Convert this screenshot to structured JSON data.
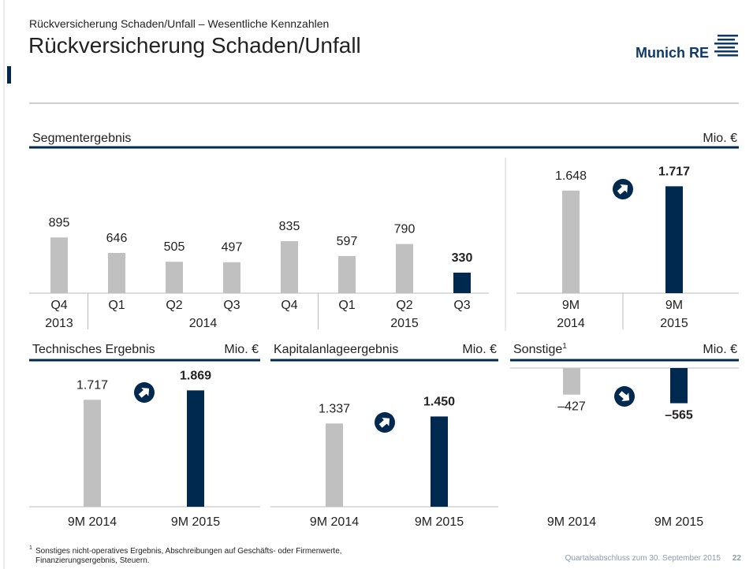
{
  "header": {
    "kicker": "Rückversicherung Schaden/Unfall – Wesentliche Kennzahlen",
    "title": "Rückversicherung Schaden/Unfall",
    "logo": "Munich RE"
  },
  "chart_data": [
    {
      "type": "bar",
      "title": "Segmentergebnis",
      "unit": "Mio. €",
      "categories": [
        "Q4",
        "Q1",
        "Q2",
        "Q3",
        "Q4",
        "Q1",
        "Q2",
        "Q3"
      ],
      "category_groups": [
        {
          "label": "2013",
          "size": 1
        },
        {
          "label": "2014",
          "size": 4
        },
        {
          "label": "2015",
          "size": 3
        }
      ],
      "values": [
        895,
        646,
        505,
        497,
        835,
        597,
        790,
        330
      ],
      "colors": [
        "#c0c0c0",
        "#c0c0c0",
        "#c0c0c0",
        "#c0c0c0",
        "#c0c0c0",
        "#c0c0c0",
        "#c0c0c0",
        "#00294f"
      ],
      "highlight": 7
    },
    {
      "type": "bar",
      "categories": [
        "9M 2014",
        "9M 2015"
      ],
      "values": [
        1648,
        1717
      ],
      "value_labels": [
        "1.648",
        "1.717"
      ],
      "colors": [
        "#c0c0c0",
        "#00294f"
      ],
      "highlight": 1
    },
    {
      "type": "bar",
      "title": "Technisches Ergebnis",
      "unit": "Mio. €",
      "categories": [
        "9M 2014",
        "9M 2015"
      ],
      "values": [
        1717,
        1869
      ],
      "value_labels": [
        "1.717",
        "1.869"
      ],
      "colors": [
        "#c0c0c0",
        "#00294f"
      ],
      "highlight": 1
    },
    {
      "type": "bar",
      "title": "Kapitalanlageergebnis",
      "unit": "Mio. €",
      "categories": [
        "9M 2014",
        "9M 2015"
      ],
      "values": [
        1337,
        1450
      ],
      "value_labels": [
        "1.337",
        "1.450"
      ],
      "colors": [
        "#c0c0c0",
        "#00294f"
      ],
      "highlight": 1
    },
    {
      "type": "bar",
      "title": "Sonstige",
      "title_superscript": "1",
      "unit": "Mio. €",
      "categories": [
        "9M 2014",
        "9M 2015"
      ],
      "values": [
        -427,
        -565
      ],
      "value_labels": [
        "–427",
        "–565"
      ],
      "colors": [
        "#c0c0c0",
        "#00294f"
      ],
      "highlight": 1
    }
  ],
  "footnote": {
    "marker": "1",
    "lines": [
      "Sonstiges nicht-operatives Ergebnis, Abschreibungen auf Geschäfts- oder Firmenwerte,",
      "Finanzierungsergebnis, Steuern."
    ]
  },
  "footer": {
    "source": "Quartalsabschluss zum 30. September 2015",
    "page": "22"
  }
}
